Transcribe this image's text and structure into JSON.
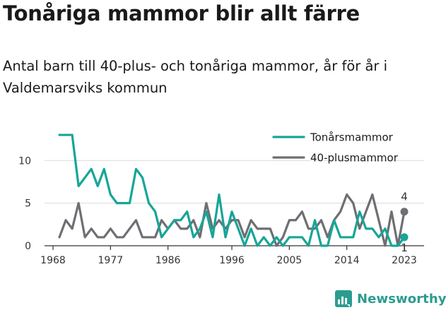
{
  "title": "Tonåriga mammor blir allt färre",
  "subtitle": "Antal barn till 40-plus- och tonåriga mammor, år för år i Valdemarsviks kommun",
  "brand": {
    "name": "Newsworthy",
    "logo_icon": "newsworthy-bar-chart-logo-icon",
    "color": "#2a9d8f"
  },
  "chart_data": {
    "type": "line",
    "title": "Tonåriga mammor blir allt färre",
    "xlabel": "",
    "ylabel": "",
    "xlim": [
      1968,
      2023
    ],
    "ylim": [
      0,
      13.5
    ],
    "x_ticks": [
      "1968",
      "1977",
      "1986",
      "1996",
      "2005",
      "2014",
      "2023"
    ],
    "y_ticks": [
      "0",
      "5",
      "10"
    ],
    "grid": "horizontal",
    "legend_position": "top-right",
    "x": [
      1969,
      1970,
      1971,
      1972,
      1973,
      1974,
      1975,
      1976,
      1977,
      1978,
      1979,
      1980,
      1981,
      1982,
      1983,
      1984,
      1985,
      1986,
      1987,
      1988,
      1989,
      1990,
      1991,
      1992,
      1993,
      1994,
      1995,
      1996,
      1997,
      1998,
      1999,
      2000,
      2001,
      2002,
      2003,
      2004,
      2005,
      2006,
      2007,
      2008,
      2009,
      2010,
      2011,
      2012,
      2013,
      2014,
      2015,
      2016,
      2017,
      2018,
      2019,
      2020,
      2021,
      2022,
      2023
    ],
    "series": [
      {
        "name": "Tonårsmammor",
        "color": "#17a598",
        "values": [
          13,
          13,
          13,
          7,
          8,
          9,
          7,
          9,
          6,
          5,
          5,
          5,
          9,
          8,
          5,
          4,
          1,
          2,
          3,
          3,
          4,
          1,
          2,
          4,
          1,
          6,
          1,
          4,
          2,
          0,
          2,
          0,
          1,
          0,
          1,
          0,
          1,
          1,
          1,
          0,
          3,
          0,
          0,
          3,
          1,
          1,
          1,
          4,
          2,
          2,
          1,
          2,
          0,
          0,
          1
        ]
      },
      {
        "name": "40-plusmammor",
        "color": "#6e6e73",
        "values": [
          1,
          3,
          2,
          5,
          1,
          2,
          1,
          1,
          2,
          1,
          1,
          2,
          3,
          1,
          1,
          1,
          3,
          2,
          3,
          2,
          2,
          3,
          1,
          5,
          2,
          3,
          2,
          3,
          3,
          1,
          3,
          2,
          2,
          2,
          0,
          1,
          3,
          3,
          4,
          2,
          2,
          3,
          1,
          3,
          4,
          6,
          5,
          2,
          4,
          6,
          3,
          0,
          4,
          0,
          4
        ]
      }
    ],
    "end_labels": [
      {
        "series": "40-plusmammor",
        "x": 2023,
        "value": "4"
      },
      {
        "series": "Tonårsmammor",
        "x": 2023,
        "value": "1"
      }
    ]
  }
}
